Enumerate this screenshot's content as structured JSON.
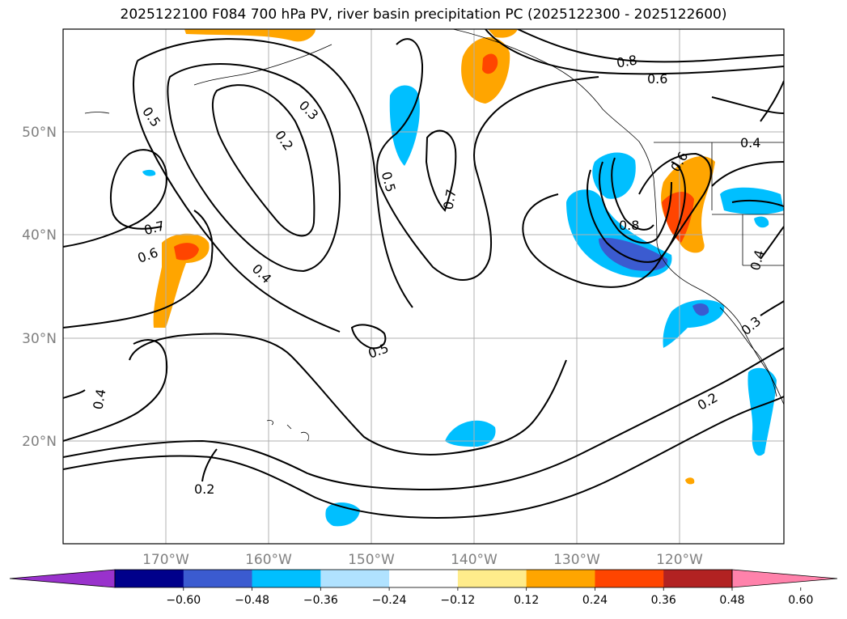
{
  "title": "2025122100 F084 700 hPa PV, river basin precipitation PC (2025122300 - 2025122600)",
  "axes": {
    "lat_labels": [
      "50°N",
      "40°N",
      "30°N",
      "20°N"
    ],
    "lon_labels": [
      "170°W",
      "160°W",
      "150°W",
      "140°W",
      "130°W",
      "120°W"
    ]
  },
  "contour_labels": [
    "0.5",
    "0.3",
    "0.2",
    "0.5",
    "0.7",
    "0.8",
    "0.6",
    "0.4",
    "0.6",
    "0.7",
    "0.6",
    "0.4",
    "0.8",
    "0.4",
    "0.5",
    "0.3",
    "0.2",
    "0.4",
    "0.2"
  ],
  "colorbar": {
    "tick_labels": [
      "−0.60",
      "−0.48",
      "−0.36",
      "−0.24",
      "−0.12",
      "0.12",
      "0.24",
      "0.36",
      "0.48",
      "0.60"
    ],
    "colors": [
      "#9932cc",
      "#00008b",
      "#3b5bd0",
      "#00bfff",
      "#b0e2ff",
      "#ffffff",
      "#ffec8b",
      "#ffa500",
      "#ff4500",
      "#b22222",
      "#ff82ab"
    ]
  },
  "fields": {
    "contour_field": "700 hPa PV",
    "shaded_field": "river basin precipitation PC",
    "contour_levels": [
      0.2,
      0.3,
      0.4,
      0.5,
      0.6,
      0.7,
      0.8
    ]
  }
}
